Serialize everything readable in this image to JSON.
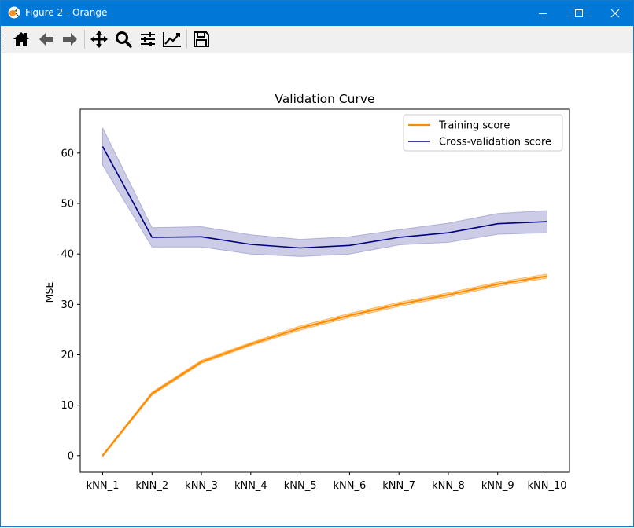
{
  "window": {
    "title": "Figure 2 - Orange",
    "controls": [
      "minimize-icon",
      "maximize-icon",
      "close-icon"
    ]
  },
  "toolbar": {
    "buttons": [
      {
        "name": "home-button",
        "icon": "home-icon"
      },
      {
        "name": "back-button",
        "icon": "arrow-left-icon"
      },
      {
        "name": "forward-button",
        "icon": "arrow-right-icon"
      },
      {
        "name": "pan-button",
        "icon": "move-icon"
      },
      {
        "name": "zoom-button",
        "icon": "magnifier-icon"
      },
      {
        "name": "configure-subplots-button",
        "icon": "sliders-icon"
      },
      {
        "name": "edit-axes-button",
        "icon": "line-chart-icon"
      },
      {
        "name": "save-button",
        "icon": "floppy-disk-icon"
      }
    ]
  },
  "chart_data": {
    "type": "line",
    "title": "Validation Curve",
    "xlabel": "",
    "ylabel": "MSE",
    "categories": [
      "kNN_1",
      "kNN_2",
      "kNN_3",
      "kNN_4",
      "kNN_5",
      "kNN_6",
      "kNN_7",
      "kNN_8",
      "kNN_9",
      "kNN_10"
    ],
    "yticks": [
      0,
      10,
      20,
      30,
      40,
      50,
      60
    ],
    "ylim": [
      -3.3,
      68.7
    ],
    "grid": false,
    "legend_position": "top-right",
    "series": [
      {
        "name": "Training score",
        "color": "#ff8c00",
        "values": [
          0.0,
          12.3,
          18.6,
          22.1,
          25.3,
          27.8,
          30.0,
          31.9,
          34.0,
          35.6
        ],
        "band_low": [
          -0.2,
          12.0,
          18.3,
          21.8,
          24.9,
          27.4,
          29.6,
          31.5,
          33.6,
          35.2
        ],
        "band_high": [
          0.2,
          12.6,
          18.9,
          22.4,
          25.7,
          28.2,
          30.4,
          32.3,
          34.4,
          36.0
        ]
      },
      {
        "name": "Cross-validation score",
        "color": "#000080",
        "band_color": "#8d8dc8",
        "values": [
          61.3,
          43.3,
          43.4,
          41.9,
          41.2,
          41.7,
          43.3,
          44.2,
          46.0,
          46.4
        ],
        "band_low": [
          57.6,
          41.4,
          41.4,
          40.0,
          39.5,
          40.0,
          41.8,
          42.3,
          43.9,
          44.2
        ],
        "band_high": [
          65.0,
          45.2,
          45.4,
          43.8,
          42.9,
          43.4,
          44.8,
          46.1,
          48.0,
          48.6
        ]
      }
    ]
  }
}
